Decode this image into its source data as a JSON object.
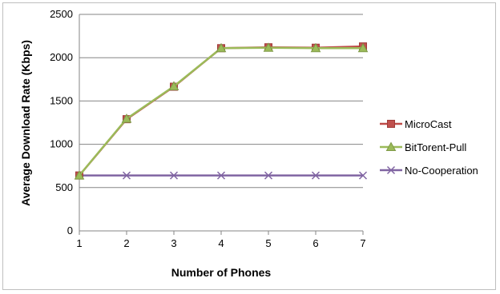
{
  "chart_data": {
    "type": "line",
    "x": [
      1,
      2,
      3,
      4,
      5,
      6,
      7
    ],
    "xlabel": "Number of Phones",
    "ylabel": "Average Download Rate (Kbps)",
    "xlim": [
      1,
      7
    ],
    "ylim": [
      0,
      2500
    ],
    "yticks": [
      0,
      500,
      1000,
      1500,
      2000,
      2500
    ],
    "xticks": [
      1,
      2,
      3,
      4,
      5,
      6,
      7
    ],
    "grid": true,
    "legend_position": "right",
    "series": [
      {
        "name": "MicroCast",
        "values": [
          640,
          1290,
          1665,
          2110,
          2120,
          2115,
          2130
        ],
        "color": "#c0504d",
        "line_color": "#be4b48",
        "marker": "square"
      },
      {
        "name": "BitTorent-Pull",
        "values": [
          640,
          1295,
          1670,
          2110,
          2115,
          2110,
          2110
        ],
        "color": "#9bbb59",
        "line_color": "#9bbb59",
        "marker": "triangle"
      },
      {
        "name": "No-Cooperation",
        "values": [
          640,
          640,
          640,
          640,
          640,
          640,
          640
        ],
        "color": "#8064a2",
        "line_color": "#8064a2",
        "marker": "x"
      }
    ]
  }
}
